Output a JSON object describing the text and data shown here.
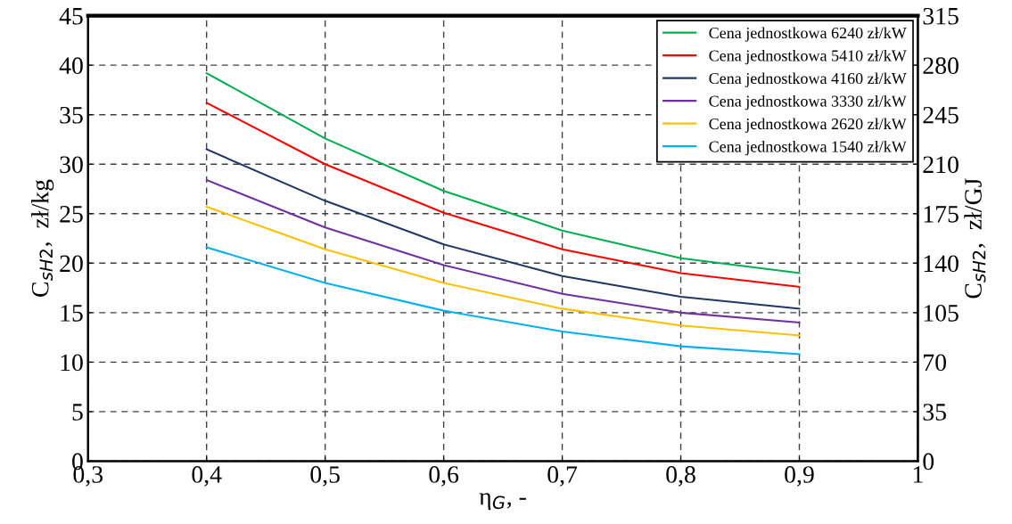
{
  "chart_data": {
    "type": "line",
    "xlabel": "η$_{G}$, -",
    "ylabel": "C$_{sH2}$,  zł/kg",
    "y2label": "C$_{sH2}$,  zł/GJ",
    "x": [
      0.4,
      0.5,
      0.6,
      0.7,
      0.8,
      0.9
    ],
    "series": [
      {
        "name": "Cena jednostkowa 6240 zł/kW",
        "color": "#00b050",
        "values": [
          39.2,
          32.6,
          27.3,
          23.3,
          20.5,
          19.0
        ]
      },
      {
        "name": "Cena jednostkowa 5410 zł/kW",
        "color": "#ff0000",
        "values": [
          36.2,
          30.0,
          25.1,
          21.4,
          19.0,
          17.6
        ]
      },
      {
        "name": "Cena jednostkowa 4160 zł/kW",
        "color": "#1f3864",
        "values": [
          31.5,
          26.3,
          21.9,
          18.7,
          16.6,
          15.4
        ]
      },
      {
        "name": "Cena jednostkowa 3330 zł/kW",
        "color": "#7030a0",
        "values": [
          28.4,
          23.6,
          19.8,
          16.9,
          15.0,
          14.0
        ]
      },
      {
        "name": "Cena jednostkowa 2620 zł/kW",
        "color": "#ffc000",
        "values": [
          25.7,
          21.4,
          18.0,
          15.4,
          13.7,
          12.7
        ]
      },
      {
        "name": "Cena jednostkowa 1540 zł/kW",
        "color": "#00b0f0",
        "values": [
          21.6,
          18.0,
          15.2,
          13.1,
          11.6,
          10.8
        ]
      }
    ],
    "xlim": [
      0.3,
      1.0
    ],
    "xticks": [
      {
        "value": 0.3,
        "label": "0,3"
      },
      {
        "value": 0.4,
        "label": "0,4"
      },
      {
        "value": 0.5,
        "label": "0,5"
      },
      {
        "value": 0.6,
        "label": "0,6"
      },
      {
        "value": 0.7,
        "label": "0,7"
      },
      {
        "value": 0.8,
        "label": "0,8"
      },
      {
        "value": 0.9,
        "label": "0,9"
      },
      1
    ],
    "ylim": [
      0,
      45
    ],
    "yticks": [
      0,
      5,
      10,
      15,
      20,
      25,
      30,
      35,
      40,
      45
    ],
    "y2lim": [
      0,
      315
    ],
    "y2ticks": [
      0,
      35,
      70,
      105,
      140,
      175,
      210,
      245,
      280,
      315
    ],
    "grid": true,
    "legend": "top right",
    "line_style": "solid",
    "marker": "none"
  }
}
